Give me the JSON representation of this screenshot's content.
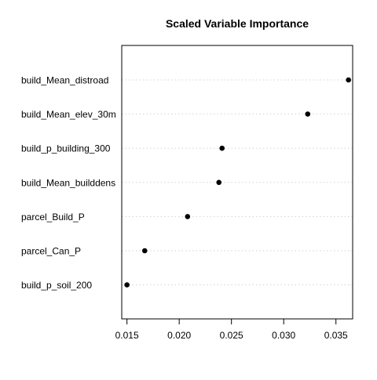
{
  "chart_data": {
    "type": "scatter",
    "subtype": "dotchart",
    "title": "Scaled Variable Importance",
    "xlabel": "",
    "ylabel": "",
    "xlim": [
      0.0145,
      0.0366
    ],
    "xticks": [
      0.015,
      0.02,
      0.025,
      0.03,
      0.035
    ],
    "xtick_labels": [
      "0.015",
      "0.020",
      "0.025",
      "0.030",
      "0.035"
    ],
    "categories": [
      "build_Mean_distroad",
      "build_Mean_elev_30m",
      "build_p_building_300",
      "build_Mean_builddens",
      "parcel_Build_P",
      "parcel_Can_P",
      "build_p_soil_200"
    ],
    "values": [
      0.0362,
      0.0323,
      0.0241,
      0.0238,
      0.0208,
      0.0167,
      0.015
    ],
    "grid": "horizontal dotted guide lines",
    "legend": "none",
    "colors": {
      "point": "#000000",
      "guide": "#d3d3d3",
      "frame": "#000000"
    }
  }
}
